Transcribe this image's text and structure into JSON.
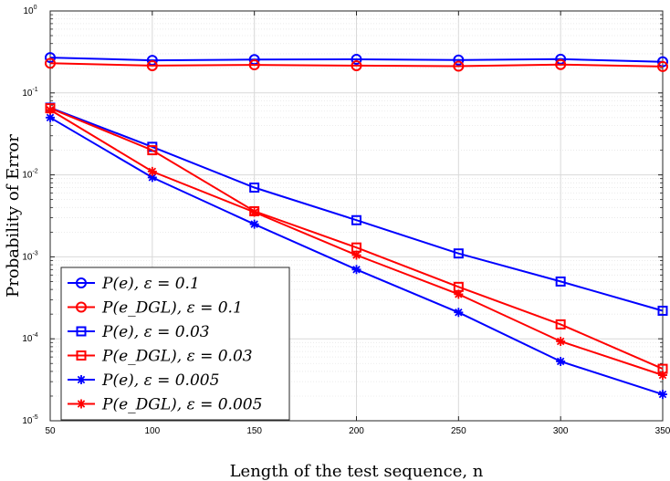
{
  "chart_data": {
    "type": "line",
    "title": "",
    "xlabel": "Length of the test sequence, n",
    "ylabel": "Probability of Error",
    "yscale": "log",
    "xlim": [
      50,
      350
    ],
    "ylim": [
      1e-05,
      1
    ],
    "grid": true,
    "legend_position": "bottom-left",
    "x": [
      50,
      100,
      150,
      200,
      250,
      300,
      350
    ],
    "x_tick_labels": [
      "50",
      "100",
      "150",
      "200",
      "250",
      "300",
      "350"
    ],
    "y_tick_labels": [
      "10^0",
      "10^-1",
      "10^-2",
      "10^-3",
      "10^-4",
      "10^-5"
    ],
    "series": [
      {
        "name": "P(e), ε = 0.1",
        "color": "#0000ff",
        "marker": "circle",
        "values": [
          0.27,
          0.25,
          0.255,
          0.257,
          0.252,
          0.258,
          0.24
        ]
      },
      {
        "name": "P(e_DGL), ε = 0.1",
        "color": "#ff0000",
        "marker": "circle",
        "values": [
          0.23,
          0.215,
          0.22,
          0.215,
          0.212,
          0.222,
          0.21
        ]
      },
      {
        "name": "P(e), ε = 0.03",
        "color": "#0000ff",
        "marker": "square",
        "values": [
          0.066,
          0.022,
          0.007,
          0.0028,
          0.0011,
          0.0005,
          0.00022
        ]
      },
      {
        "name": "P(e_DGL), ε = 0.03",
        "color": "#ff0000",
        "marker": "square",
        "values": [
          0.065,
          0.02,
          0.0036,
          0.0013,
          0.00043,
          0.00015,
          4.3e-05
        ]
      },
      {
        "name": "P(e), ε = 0.005",
        "color": "#0000ff",
        "marker": "star",
        "values": [
          0.05,
          0.0093,
          0.0025,
          0.0007,
          0.00021,
          5.3e-05,
          2.1e-05
        ]
      },
      {
        "name": "P(e_DGL), ε = 0.005",
        "color": "#ff0000",
        "marker": "star",
        "values": [
          0.062,
          0.011,
          0.0035,
          0.00105,
          0.00035,
          9.3e-05,
          3.6e-05
        ]
      }
    ]
  }
}
